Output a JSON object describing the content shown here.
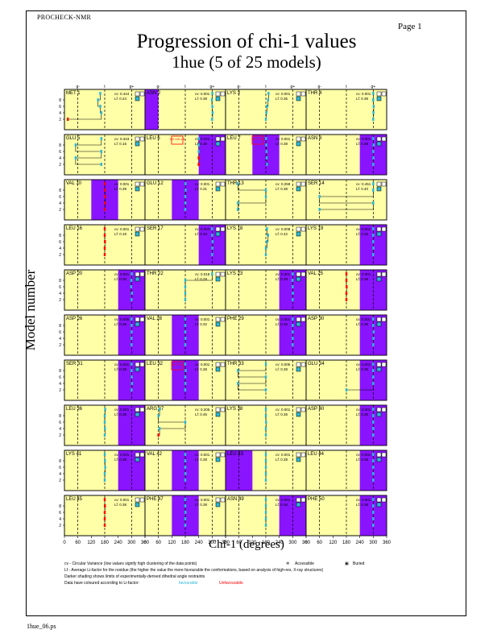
{
  "header": {
    "program": "PROCHECK-NMR",
    "page": "Page  1",
    "title": "Progression of chi-1 values",
    "subtitle": "1hue (5 of 25 models)",
    "footer": "1hue_06.ps"
  },
  "legend": {
    "cv_note": "cv - Circular Variance (low values signify high clustering of the data points)",
    "accessible": "Accessible",
    "buried": "Buried",
    "lf_note": "Lf - Average Li-factor for the residue (the higher the value the more favourable the conformations, based on analysis of high-res. X-ray structures)",
    "shading_note": "Darker shading shows limits of experimentally-derived dihedral angle restraints",
    "coloured_note": "Data have coloured according to Li-factor:",
    "favourable": "favourable",
    "unfavourable": "Unfavourable"
  },
  "colors": {
    "background": "#ffffa8",
    "restraint": "#8a14ff",
    "favourable": "#2bb8d6",
    "unfavourable": "#ff0000",
    "line": "#000000"
  },
  "chart_data": {
    "type": "scatter",
    "xlabel": "Chi-1 (degrees)",
    "ylabel": "Model number",
    "xlim": [
      0,
      360
    ],
    "xticks": [
      "0",
      "60",
      "120",
      "180",
      "240",
      "300",
      "360"
    ],
    "yticks": [
      "2",
      "4",
      "6",
      "8"
    ],
    "ylim": [
      0,
      10
    ],
    "top_labels": [
      "g-",
      "t",
      "g+"
    ],
    "panels": [
      {
        "residue": "MET 1",
        "cv": "cv: 0.444",
        "lf": "Lf: 0.24",
        "acc": "a",
        "restraint": null,
        "values": [
          15,
          165,
          160,
          150,
          160
        ],
        "fav": [
          false,
          true,
          true,
          true,
          true
        ]
      },
      {
        "residue": "ASN 2",
        "cv": "cv: 0.001",
        "lf": "Lf: 0.38",
        "acc": "b",
        "restraint": [
          0,
          60
        ],
        "values": [
          300,
          302,
          301,
          299,
          301
        ],
        "fav": [
          true,
          true,
          true,
          true,
          true
        ]
      },
      {
        "residue": "LYS 3",
        "cv": "cv: 0.001",
        "lf": "Lf: 0.35",
        "acc": "a",
        "restraint": null,
        "values": [
          180,
          182,
          185,
          190,
          192
        ],
        "fav": [
          true,
          true,
          true,
          true,
          true
        ]
      },
      {
        "residue": "THR 4",
        "cv": "cv: 0.001",
        "lf": "Lf: 0.38",
        "acc": "b",
        "restraint": null,
        "values": [
          300,
          301,
          302,
          300,
          300
        ],
        "fav": [
          true,
          true,
          true,
          true,
          true
        ]
      },
      {
        "residue": "GLU 5",
        "cv": "cv: 0.343",
        "lf": "Lf: 0.16",
        "acc": "a",
        "restraint": null,
        "values": [
          165,
          50,
          165,
          50,
          165
        ],
        "fav": [
          true,
          true,
          true,
          true,
          true
        ]
      },
      {
        "residue": "LEU 6",
        "cv": "cv: 0.021",
        "lf": "Lf: 0.38",
        "acc": "b",
        "restraint": [
          240,
          360
        ],
        "values": [
          240,
          240,
          240,
          240,
          240
        ],
        "fav": [
          false,
          false,
          true,
          true,
          true
        ],
        "note": "NO CHI-1 5"
      },
      {
        "residue": "LEU 7",
        "cv": "cv: 0.001",
        "lf": "Lf: 0.38",
        "acc": "b",
        "restraint": [
          120,
          240
        ],
        "values": [
          185,
          184,
          183,
          182,
          181
        ],
        "fav": [
          true,
          true,
          true,
          true,
          true
        ],
        "note": "NO CHI-1"
      },
      {
        "residue": "ASN 8",
        "cv": "cv: 0.001",
        "lf": "Lf: 0.38",
        "acc": "b",
        "restraint": [
          240,
          360
        ],
        "values": [
          300,
          301,
          300,
          302,
          300
        ],
        "fav": [
          true,
          true,
          true,
          true,
          true
        ]
      },
      {
        "residue": "VAL 10",
        "cv": "cv: 0.001",
        "lf": "Lf: 0.39",
        "acc": "b",
        "restraint": [
          120,
          240
        ],
        "values": [
          180,
          181,
          182,
          181,
          180
        ],
        "fav": [
          false,
          false,
          false,
          false,
          false
        ]
      },
      {
        "residue": "GLU 12",
        "cv": "cv: 0.001",
        "lf": "Lf: 0.31",
        "acc": "a",
        "restraint": [
          120,
          240
        ],
        "values": [
          180,
          181,
          180,
          182,
          181
        ],
        "fav": [
          true,
          true,
          true,
          true,
          true
        ]
      },
      {
        "residue": "THR 13",
        "cv": "cv: 0.259",
        "lf": "Lf: 0.38",
        "acc": "a",
        "restraint": null,
        "values": [
          55,
          55,
          180,
          180,
          55
        ],
        "fav": [
          true,
          true,
          true,
          true,
          true
        ]
      },
      {
        "residue": "SER 14",
        "cv": "cv: 0.451",
        "lf": "Lf: 0.40",
        "acc": "a",
        "restraint": null,
        "values": [
          60,
          300,
          60,
          300,
          300
        ],
        "fav": [
          true,
          true,
          true,
          true,
          true
        ]
      },
      {
        "residue": "LEU 16",
        "cv": "cv: 0.001",
        "lf": "Lf: 0.19",
        "acc": "b",
        "restraint": null,
        "values": [
          180,
          180,
          181,
          180,
          180
        ],
        "fav": [
          false,
          false,
          false,
          false,
          false
        ]
      },
      {
        "residue": "SER 17",
        "cv": "cv: 0.003",
        "lf": "Lf: 0.33",
        "acc": "a",
        "restraint": [
          240,
          360
        ],
        "values": [
          300,
          301,
          302,
          300,
          300
        ],
        "fav": [
          true,
          true,
          true,
          true,
          true
        ]
      },
      {
        "residue": "LYS 18",
        "cv": "cv: 0.008",
        "lf": "Lf: 0.42",
        "acc": "a",
        "restraint": null,
        "values": [
          180,
          180,
          185,
          190,
          185
        ],
        "fav": [
          true,
          true,
          true,
          true,
          true
        ]
      },
      {
        "residue": "LYS 19",
        "cv": "cv: 0.001",
        "lf": "Lf: 0.35",
        "acc": "b",
        "restraint": [
          240,
          360
        ],
        "values": [
          300,
          301,
          300,
          300,
          300
        ],
        "fav": [
          true,
          true,
          true,
          true,
          true
        ]
      },
      {
        "residue": "ASP 20",
        "cv": "cv: 0.001",
        "lf": "Lf: 0.30",
        "acc": "a",
        "restraint": [
          240,
          360
        ],
        "values": [
          300,
          302,
          298,
          299,
          301
        ],
        "fav": [
          true,
          true,
          true,
          true,
          true
        ]
      },
      {
        "residue": "THR 22",
        "cv": "cv: 0.018",
        "lf": "Lf: 0.29",
        "acc": "a",
        "restraint": null,
        "values": [
          180,
          180,
          180,
          180,
          300
        ],
        "fav": [
          true,
          true,
          true,
          true,
          true
        ]
      },
      {
        "residue": "LYS 23",
        "cv": "cv: 0.001",
        "lf": "Lf: 0.39",
        "acc": "b",
        "restraint": [
          240,
          360
        ],
        "values": [
          300,
          301,
          300,
          299,
          300
        ],
        "fav": [
          true,
          true,
          true,
          true,
          true
        ]
      },
      {
        "residue": "VAL 25",
        "cv": "cv: 0.001",
        "lf": "Lf: 0.38",
        "acc": "b",
        "restraint": [
          240,
          360
        ],
        "values": [
          180,
          180,
          181,
          180,
          180
        ],
        "fav": [
          false,
          false,
          false,
          false,
          false
        ]
      },
      {
        "residue": "ASP 26",
        "cv": "cv: 0.008",
        "lf": "Lf: 0.35",
        "acc": "a",
        "restraint": [
          240,
          360
        ],
        "values": [
          300,
          300,
          300,
          300,
          300
        ],
        "fav": [
          true,
          true,
          true,
          true,
          true
        ]
      },
      {
        "residue": "VAL 28",
        "cv": "cv: 0.001",
        "lf": "Lf: 0.32",
        "acc": "b",
        "restraint": [
          120,
          240
        ],
        "values": [
          180,
          181,
          180,
          180,
          180
        ],
        "fav": [
          true,
          true,
          true,
          true,
          true
        ]
      },
      {
        "residue": "PHE 29",
        "cv": "cv: 0.001",
        "lf": "Lf: 0.35",
        "acc": "b",
        "restraint": [
          240,
          360
        ],
        "values": [
          300,
          300,
          300,
          300,
          300
        ],
        "fav": [
          true,
          true,
          true,
          true,
          true
        ]
      },
      {
        "residue": "ASP 30",
        "cv": "cv: 0.001",
        "lf": "Lf: 0.35",
        "acc": "a",
        "restraint": [
          240,
          360
        ],
        "values": [
          300,
          301,
          302,
          300,
          300
        ],
        "fav": [
          true,
          true,
          true,
          true,
          true
        ]
      },
      {
        "residue": "SER 31",
        "cv": "cv: 0.001",
        "lf": "Lf: 0.38",
        "acc": "a",
        "restraint": [
          240,
          360
        ],
        "values": [
          300,
          302,
          301,
          300,
          300
        ],
        "fav": [
          true,
          true,
          true,
          true,
          true
        ]
      },
      {
        "residue": "LEU 32",
        "cv": "cv: 0.001",
        "lf": "Lf: 0.38",
        "acc": "b",
        "restraint": [
          120,
          240
        ],
        "values": [
          180,
          181,
          180,
          182,
          180
        ],
        "fav": [
          true,
          true,
          true,
          true,
          true
        ],
        "note": "NO CHI-1"
      },
      {
        "residue": "THR 33",
        "cv": "cv: 0.005",
        "lf": "Lf: 0.38",
        "acc": "a",
        "restraint": null,
        "values": [
          180,
          55,
          180,
          55,
          180
        ],
        "fav": [
          true,
          true,
          true,
          true,
          true
        ]
      },
      {
        "residue": "GLU 34",
        "cv": "cv: 0.001",
        "lf": "Lf: 0.35",
        "acc": "a",
        "restraint": [
          240,
          360
        ],
        "values": [
          180,
          300,
          300,
          300,
          300
        ],
        "fav": [
          true,
          true,
          true,
          true,
          true
        ]
      },
      {
        "residue": "LEU 36",
        "cv": "cv: 0.001",
        "lf": "Lf: 0.39",
        "acc": "b",
        "restraint": [
          240,
          360
        ],
        "values": [
          180,
          181,
          180,
          180,
          182
        ],
        "fav": [
          true,
          true,
          true,
          true,
          true
        ]
      },
      {
        "residue": "ARG 37",
        "cv": "cv: 0.205",
        "lf": "Lf: 0.45",
        "acc": "a",
        "restraint": null,
        "values": [
          60,
          65,
          180,
          60,
          65
        ],
        "fav": [
          false,
          true,
          true,
          true,
          true
        ]
      },
      {
        "residue": "LYS 38",
        "cv": "cv: 0.001",
        "lf": "Lf: 0.35",
        "acc": "a",
        "restraint": null,
        "values": [
          180,
          180,
          181,
          180,
          180
        ],
        "fav": [
          true,
          true,
          true,
          true,
          true
        ]
      },
      {
        "residue": "ASP 40",
        "cv": "cv: 0.001",
        "lf": "Lf: 0.35",
        "acc": "a",
        "restraint": [
          240,
          360
        ],
        "values": [
          300,
          300,
          300,
          300,
          300
        ],
        "fav": [
          true,
          true,
          true,
          true,
          true
        ]
      },
      {
        "residue": "LYS 41",
        "cv": "cv: 0.001",
        "lf": "Lf: 0.38",
        "acc": "b",
        "restraint": [
          240,
          360
        ],
        "values": [
          180,
          180,
          182,
          181,
          180
        ],
        "fav": [
          true,
          true,
          true,
          true,
          true
        ]
      },
      {
        "residue": "VAL 42",
        "cv": "cv: 0.001",
        "lf": "Lf: 0.38",
        "acc": "b",
        "restraint": [
          120,
          240
        ],
        "values": [
          180,
          181,
          180,
          180,
          180
        ],
        "fav": [
          true,
          true,
          true,
          true,
          true
        ]
      },
      {
        "residue": "LEU 43",
        "cv": "cv: 0.001",
        "lf": "Lf: 0.38",
        "acc": "b",
        "restraint": [
          0,
          120
        ],
        "values": [
          180,
          180,
          180,
          180,
          180
        ],
        "fav": [
          true,
          true,
          true,
          true,
          true
        ]
      },
      {
        "residue": "LEU 44",
        "cv": "cv: 0.001",
        "lf": "Lf: 0.38",
        "acc": "b",
        "restraint": [
          240,
          360
        ],
        "values": [
          300,
          300,
          300,
          300,
          300
        ],
        "fav": [
          true,
          true,
          true,
          true,
          true
        ]
      },
      {
        "residue": "LEU 45",
        "cv": "cv: 0.001",
        "lf": "Lf: 0.38",
        "acc": "b",
        "restraint": null,
        "values": [
          180,
          180,
          180,
          181,
          180
        ],
        "fav": [
          false,
          false,
          false,
          false,
          false
        ]
      },
      {
        "residue": "PHE 47",
        "cv": "cv: 0.001",
        "lf": "Lf: 0.38",
        "acc": "b",
        "restraint": [
          120,
          240
        ],
        "values": [
          180,
          180,
          181,
          180,
          180
        ],
        "fav": [
          true,
          true,
          true,
          true,
          true
        ]
      },
      {
        "residue": "ASN 49",
        "cv": "cv: 0.001",
        "lf": "Lf: 0.36",
        "acc": "a",
        "restraint": [
          240,
          360
        ],
        "values": [
          180,
          180,
          180,
          180,
          180
        ],
        "fav": [
          true,
          true,
          true,
          true,
          true
        ]
      },
      {
        "residue": "PHE 50",
        "cv": "cv: 0.001",
        "lf": "Lf: 0.38",
        "acc": "b",
        "restraint": [
          240,
          360
        ],
        "values": [
          300,
          300,
          300,
          300,
          300
        ],
        "fav": [
          true,
          true,
          true,
          true,
          true
        ]
      }
    ]
  }
}
